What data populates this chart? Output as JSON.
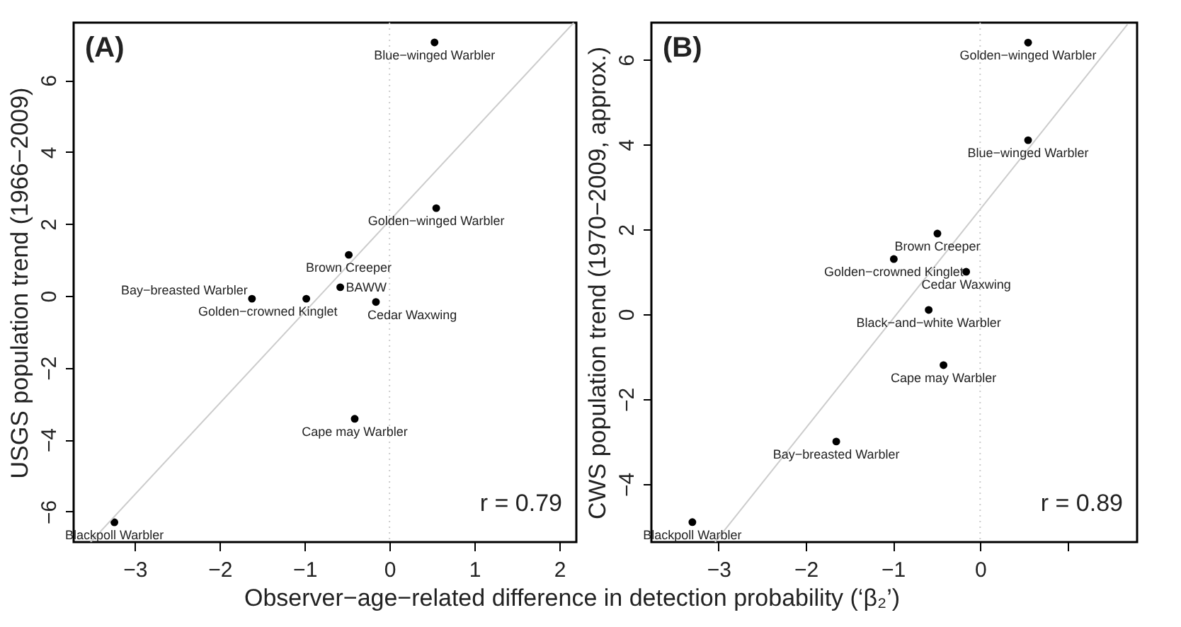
{
  "chart_data": [
    {
      "type": "scatter",
      "title": "(A)",
      "xlabel": "Observer−age−related difference in detection probability (‘β₂’)",
      "ylabel": "USGS population trend (1966−2009)",
      "xlim": [
        -3.72,
        2.2
      ],
      "ylim": [
        -6.85,
        7.6
      ],
      "xticks": [
        -3,
        -2,
        -1,
        0,
        1,
        2
      ],
      "yticks": [
        -6,
        -4,
        -2,
        0,
        2,
        4,
        6
      ],
      "grid": false,
      "series": [
        {
          "marker": "circle",
          "color": "#000000",
          "x": [
            0.53,
            0.55,
            -0.48,
            -0.58,
            -1.62,
            -0.98,
            -0.16,
            -0.41,
            -3.24
          ],
          "values": [
            7.05,
            2.44,
            1.14,
            0.24,
            -0.08,
            -0.08,
            -0.17,
            -3.42,
            -6.3
          ]
        },
        {
          "type": "line",
          "color": "#cccccc",
          "x": [
            -3.52,
            2.17
          ],
          "values": [
            -6.85,
            7.6
          ]
        }
      ],
      "ref_lines": [
        {
          "axis": "x",
          "value": 0,
          "color": "#cccccc",
          "line_style": "dotted"
        }
      ],
      "annotations": [
        {
          "text": "Blue−winged Warbler",
          "x": 0.53,
          "y": 7.05
        },
        {
          "text": "Golden−winged Warbler",
          "x": 0.55,
          "y": 2.44
        },
        {
          "text": "Brown Creeper",
          "x": -0.48,
          "y": 1.14
        },
        {
          "text": "BAWW",
          "x": -0.58,
          "y": 0.24
        },
        {
          "text": "Bay−breasted Warbler",
          "x": -1.62,
          "y": -0.08
        },
        {
          "text": "Golden−crowned Kinglet",
          "x": -0.98,
          "y": -0.08
        },
        {
          "text": "Cedar Waxwing",
          "x": -0.16,
          "y": -0.17
        },
        {
          "text": "Cape may Warbler",
          "x": -0.41,
          "y": -3.42
        },
        {
          "text": "Blackpoll Warbler",
          "x": -3.24,
          "y": -6.3
        },
        "r = 0.79"
      ]
    },
    {
      "type": "scatter",
      "title": "(B)",
      "ylabel": "CWS population trend (1970−2009, approx.)",
      "xlim": [
        -3.77,
        1.8
      ],
      "ylim": [
        -5.37,
        6.87
      ],
      "xticks": [
        -3,
        -2,
        -1,
        0,
        {
          "value": 1,
          "label": null
        }
      ],
      "yticks": [
        -4,
        -2,
        0,
        2,
        4,
        6
      ],
      "grid": false,
      "series": [
        {
          "marker": "circle",
          "color": "#000000",
          "x": [
            0.55,
            0.55,
            -0.49,
            -0.99,
            -0.16,
            -0.59,
            -0.42,
            -1.65,
            -3.3
          ],
          "values": [
            6.4,
            4.1,
            1.9,
            1.3,
            1.0,
            0.1,
            -1.2,
            -3.0,
            -4.9
          ]
        },
        {
          "type": "line",
          "color": "#cccccc",
          "x": [
            -3.04,
            1.69
          ],
          "values": [
            -5.37,
            6.83
          ]
        }
      ],
      "ref_lines": [
        {
          "axis": "x",
          "value": 0,
          "color": "#cccccc",
          "line_style": "dotted"
        }
      ],
      "annotations": [
        {
          "text": "Golden−winged Warbler",
          "x": 0.55,
          "y": 6.4
        },
        {
          "text": "Blue−winged Warbler",
          "x": 0.55,
          "y": 4.1
        },
        {
          "text": "Brown Creeper",
          "x": -0.49,
          "y": 1.9
        },
        {
          "text": "Golden−crowned Kinglet",
          "x": -0.99,
          "y": 1.3
        },
        {
          "text": "Cedar Waxwing",
          "x": -0.16,
          "y": 1.0
        },
        {
          "text": "Black−and−white Warbler",
          "x": -0.59,
          "y": 0.1
        },
        {
          "text": "Cape may Warbler",
          "x": -0.42,
          "y": -1.2
        },
        {
          "text": "Bay−breasted Warbler",
          "x": -1.65,
          "y": -3.0
        },
        {
          "text": "Blackpoll Warbler",
          "x": -3.3,
          "y": -4.9
        },
        "r = 0.89"
      ]
    }
  ]
}
